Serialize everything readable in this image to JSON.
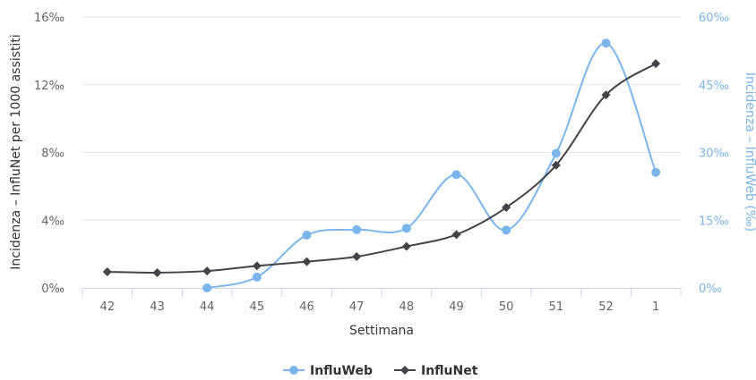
{
  "chart_data": {
    "type": "line",
    "categories": [
      "42",
      "43",
      "44",
      "45",
      "46",
      "47",
      "48",
      "49",
      "50",
      "51",
      "52",
      "1"
    ],
    "xlabel": "Settimana",
    "ylabel_left": "Incidenza – InfluNet per 1000 assistiti",
    "ylabel_right": "Incidenza – InfluWeb (‰)",
    "ylim_left": [
      0,
      16
    ],
    "ylim_right": [
      0,
      60
    ],
    "left_ticks": [
      "0‰",
      "4‰",
      "8‰",
      "12‰",
      "16‰"
    ],
    "right_ticks": [
      "0‰",
      "15‰",
      "30‰",
      "45‰",
      "60‰"
    ],
    "grid": true,
    "legend_position": "bottom-center",
    "series": [
      {
        "name": "InfluWeb",
        "axis": "right",
        "color": "#7cb5ec",
        "marker": "circle",
        "values": [
          null,
          null,
          0,
          2.4,
          11.7,
          12.9,
          13.2,
          25.1,
          12.8,
          29.8,
          54.2,
          25.6
        ]
      },
      {
        "name": "InfluNet",
        "axis": "left",
        "color": "#434348",
        "marker": "diamond",
        "values": [
          0.95,
          0.9,
          1.0,
          1.3,
          1.55,
          1.85,
          2.45,
          3.15,
          4.75,
          7.25,
          11.4,
          13.25
        ]
      }
    ]
  }
}
